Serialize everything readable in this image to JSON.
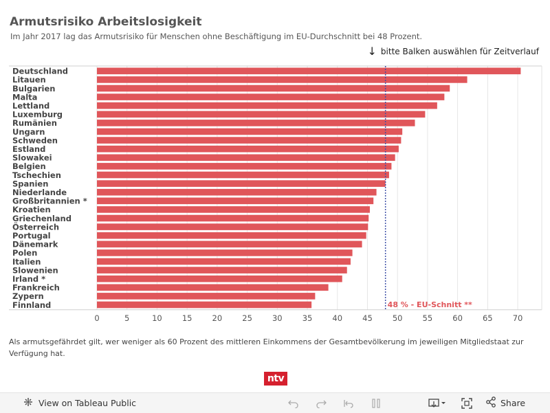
{
  "header": {
    "title": "Armutsrisiko Arbeitslosigkeit",
    "subtitle": "Im Jahr 2017 lag das Armutsrisiko für Menschen ohne Beschäftigung im EU-Durchschnitt bei 48 Prozent.",
    "hint": "bitte Balken auswählen für Zeitverlauf"
  },
  "chart_data": {
    "type": "bar",
    "orientation": "horizontal",
    "categories": [
      "Deutschland",
      "Litauen",
      "Bulgarien",
      "Malta",
      "Lettland",
      "Luxemburg",
      "Rumänien",
      "Ungarn",
      "Schweden",
      "Estland",
      "Slowakei",
      "Belgien",
      "Tschechien",
      "Spanien",
      "Niederlande",
      "Großbritannien *",
      "Kroatien",
      "Griechenland",
      "Österreich",
      "Portugal",
      "Dänemark",
      "Polen",
      "Italien",
      "Slowenien",
      "Irland *",
      "Frankreich",
      "Zypern",
      "Finnland"
    ],
    "values": [
      70.5,
      61.6,
      58.7,
      57.8,
      56.6,
      54.6,
      52.9,
      50.8,
      50.6,
      50.2,
      49.6,
      49.0,
      48.6,
      48.0,
      46.5,
      46.0,
      45.4,
      45.2,
      45.1,
      44.8,
      44.1,
      42.5,
      42.2,
      41.6,
      40.8,
      38.5,
      36.3,
      35.7
    ],
    "xlim": [
      0,
      74
    ],
    "xticks": [
      "0",
      "5",
      "10",
      "15",
      "20",
      "25",
      "30",
      "35",
      "40",
      "45",
      "50",
      "55",
      "60",
      "65",
      "70"
    ],
    "reference_line": {
      "value": 48,
      "label": "48 % - EU-Schnitt **"
    },
    "colors": {
      "bar": "#e0565a",
      "reference": "#3f51a8",
      "reference_label": "#e0565a"
    }
  },
  "footnote": "Als armutsgefährdet gilt, wer weniger als 60 Prozent des mittleren Einkommens der Gesamtbevölkerung im jeweiligen Mitgliedstaat zur Verfügung hat.",
  "logo": {
    "text": "ntv",
    "color": "#d5202e"
  },
  "toolbar": {
    "view_label": "View on Tableau Public",
    "share_label": "Share",
    "icons": [
      "undo-icon",
      "redo-icon",
      "revert-icon",
      "pause-icon",
      "download-icon",
      "fullscreen-icon",
      "share-icon"
    ]
  }
}
